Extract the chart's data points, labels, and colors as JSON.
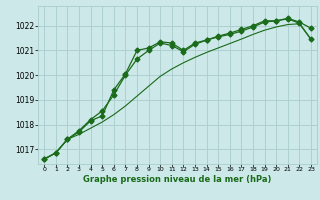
{
  "title": "Graphe pression niveau de la mer (hPa)",
  "bg_color": "#cce8e8",
  "grid_color": "#aacccc",
  "line_color": "#1a6b1a",
  "x_min": -0.5,
  "x_max": 23.5,
  "y_min": 1016.4,
  "y_max": 1022.8,
  "x_ticks": [
    0,
    1,
    2,
    3,
    4,
    5,
    6,
    7,
    8,
    9,
    10,
    11,
    12,
    13,
    14,
    15,
    16,
    17,
    18,
    19,
    20,
    21,
    22,
    23
  ],
  "y_ticks": [
    1017,
    1018,
    1019,
    1020,
    1021,
    1022
  ],
  "line1_x": [
    0,
    1,
    2,
    3,
    4,
    5,
    6,
    7,
    8,
    9,
    10,
    11,
    12,
    13,
    14,
    15,
    16,
    17,
    18,
    19,
    20,
    21,
    22,
    23
  ],
  "line1_y": [
    1016.6,
    1016.85,
    1017.4,
    1017.6,
    1017.85,
    1018.1,
    1018.4,
    1018.75,
    1019.15,
    1019.55,
    1019.95,
    1020.25,
    1020.5,
    1020.72,
    1020.92,
    1021.1,
    1021.28,
    1021.46,
    1021.65,
    1021.82,
    1021.95,
    1022.05,
    1022.08,
    1021.45
  ],
  "line2_x": [
    0,
    1,
    2,
    3,
    4,
    5,
    6,
    7,
    8,
    9,
    10,
    11,
    12,
    13,
    14,
    15,
    16,
    17,
    18,
    19,
    20,
    21,
    22,
    23
  ],
  "line2_y": [
    1016.6,
    1016.85,
    1017.4,
    1017.7,
    1018.15,
    1018.35,
    1019.4,
    1020.05,
    1021.0,
    1021.1,
    1021.35,
    1021.3,
    1021.0,
    1021.3,
    1021.42,
    1021.55,
    1021.65,
    1021.78,
    1021.95,
    1022.15,
    1022.2,
    1022.28,
    1022.1,
    1021.45
  ],
  "line3_x": [
    0,
    1,
    2,
    3,
    4,
    5,
    6,
    7,
    8,
    9,
    10,
    11,
    12,
    13,
    14,
    15,
    16,
    17,
    18,
    19,
    20,
    21,
    22,
    23
  ],
  "line3_y": [
    1016.6,
    1016.85,
    1017.4,
    1017.75,
    1018.2,
    1018.55,
    1019.2,
    1020.0,
    1020.65,
    1021.0,
    1021.3,
    1021.2,
    1020.95,
    1021.25,
    1021.42,
    1021.58,
    1021.7,
    1021.85,
    1022.0,
    1022.2,
    1022.2,
    1022.3,
    1022.15,
    1021.9
  ]
}
